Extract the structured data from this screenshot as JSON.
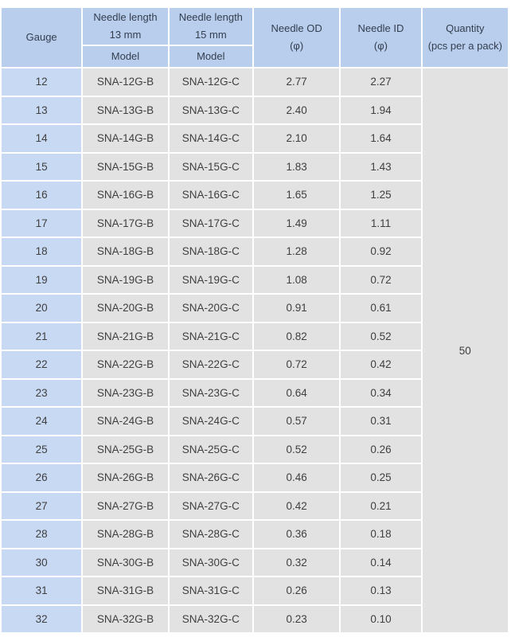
{
  "colors": {
    "header_bg": "#b9cdec",
    "gauge_bg": "#c8d9f3",
    "cell_bg": "#e2e2e2",
    "header_text": "#333f4f",
    "cell_text": "#3f3f3f",
    "page_bg": "#ffffff",
    "divider": "#ffffff"
  },
  "table": {
    "header": {
      "gauge": "Gauge",
      "needle_length_13": {
        "line1": "Needle length",
        "line2": "13 mm",
        "sub": "Model"
      },
      "needle_length_15": {
        "line1": "Needle length",
        "line2": "15 mm",
        "sub": "Model"
      },
      "needle_od": {
        "line1": "Needle OD",
        "line2": "(φ)"
      },
      "needle_id": {
        "line1": "Needle ID",
        "line2": "(φ)"
      },
      "quantity": {
        "line1": "Quantity",
        "line2": "(pcs per a pack)"
      }
    },
    "quantity_value": "50",
    "rows": [
      {
        "gauge": "12",
        "model_13": "SNA-12G-B",
        "model_15": "SNA-12G-C",
        "od": "2.77",
        "id": "2.27"
      },
      {
        "gauge": "13",
        "model_13": "SNA-13G-B",
        "model_15": "SNA-13G-C",
        "od": "2.40",
        "id": "1.94"
      },
      {
        "gauge": "14",
        "model_13": "SNA-14G-B",
        "model_15": "SNA-14G-C",
        "od": "2.10",
        "id": "1.64"
      },
      {
        "gauge": "15",
        "model_13": "SNA-15G-B",
        "model_15": "SNA-15G-C",
        "od": "1.83",
        "id": "1.43"
      },
      {
        "gauge": "16",
        "model_13": "SNA-16G-B",
        "model_15": "SNA-16G-C",
        "od": "1.65",
        "id": "1.25"
      },
      {
        "gauge": "17",
        "model_13": "SNA-17G-B",
        "model_15": "SNA-17G-C",
        "od": "1.49",
        "id": "1.11"
      },
      {
        "gauge": "18",
        "model_13": "SNA-18G-B",
        "model_15": "SNA-18G-C",
        "od": "1.28",
        "id": "0.92"
      },
      {
        "gauge": "19",
        "model_13": "SNA-19G-B",
        "model_15": "SNA-19G-C",
        "od": "1.08",
        "id": "0.72"
      },
      {
        "gauge": "20",
        "model_13": "SNA-20G-B",
        "model_15": "SNA-20G-C",
        "od": "0.91",
        "id": "0.61"
      },
      {
        "gauge": "21",
        "model_13": "SNA-21G-B",
        "model_15": "SNA-21G-C",
        "od": "0.82",
        "id": "0.52"
      },
      {
        "gauge": "22",
        "model_13": "SNA-22G-B",
        "model_15": "SNA-22G-C",
        "od": "0.72",
        "id": "0.42"
      },
      {
        "gauge": "23",
        "model_13": "SNA-23G-B",
        "model_15": "SNA-23G-C",
        "od": "0.64",
        "id": "0.34"
      },
      {
        "gauge": "24",
        "model_13": "SNA-24G-B",
        "model_15": "SNA-24G-C",
        "od": "0.57",
        "id": "0.31"
      },
      {
        "gauge": "25",
        "model_13": "SNA-25G-B",
        "model_15": "SNA-25G-C",
        "od": "0.52",
        "id": "0.26"
      },
      {
        "gauge": "26",
        "model_13": "SNA-26G-B",
        "model_15": "SNA-26G-C",
        "od": "0.46",
        "id": "0.25"
      },
      {
        "gauge": "27",
        "model_13": "SNA-27G-B",
        "model_15": "SNA-27G-C",
        "od": "0.42",
        "id": "0.21"
      },
      {
        "gauge": "28",
        "model_13": "SNA-28G-B",
        "model_15": "SNA-28G-C",
        "od": "0.36",
        "id": "0.18"
      },
      {
        "gauge": "30",
        "model_13": "SNA-30G-B",
        "model_15": "SNA-30G-C",
        "od": "0.32",
        "id": "0.14"
      },
      {
        "gauge": "31",
        "model_13": "SNA-31G-B",
        "model_15": "SNA-31G-C",
        "od": "0.26",
        "id": "0.13"
      },
      {
        "gauge": "32",
        "model_13": "SNA-32G-B",
        "model_15": "SNA-32G-C",
        "od": "0.23",
        "id": "0.10"
      }
    ]
  }
}
